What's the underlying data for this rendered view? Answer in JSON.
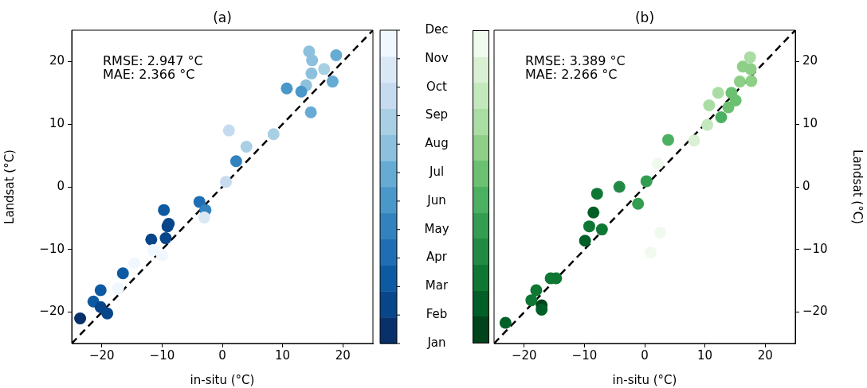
{
  "chart_data": [
    {
      "type": "scatter",
      "title": "(a)",
      "xlabel": "in-situ (°C)",
      "ylabel": "Landsat (°C)",
      "xlim": [
        -25,
        25
      ],
      "ylim": [
        -25,
        25
      ],
      "xticks": [
        -20,
        -10,
        0,
        10,
        20
      ],
      "yticks": [
        -20,
        -10,
        0,
        10,
        20
      ],
      "grid": false,
      "legend": false,
      "clim": [
        1,
        12
      ],
      "cticks": [
        {
          "value": 1,
          "label": "Jan"
        },
        {
          "value": 2,
          "label": "Feb"
        },
        {
          "value": 3,
          "label": "Mar"
        },
        {
          "value": 4,
          "label": "Apr"
        },
        {
          "value": 5,
          "label": "May"
        },
        {
          "value": 6,
          "label": "Jun"
        },
        {
          "value": 7,
          "label": "Jul"
        },
        {
          "value": 8,
          "label": "Aug"
        },
        {
          "value": 9,
          "label": "Sep"
        },
        {
          "value": 10,
          "label": "Oct"
        },
        {
          "value": 11,
          "label": "Nov"
        },
        {
          "value": 12,
          "label": "Dec"
        }
      ],
      "annotations": [
        "RMSE: 2.947 °C",
        "MAE: 2.366 °C"
      ],
      "series": [
        {
          "type": "scatter",
          "marker": "circle",
          "x": [
            14.4,
            18.9,
            14.9,
            16.9,
            14.8,
            18.3,
            13.9,
            10.7,
            13.1,
            14.7,
            1.1,
            8.5,
            4.0,
            2.3,
            0.6,
            -3.8,
            -2.8,
            -3.0,
            -9.7,
            -8.9,
            -9.1,
            -11.8,
            -9.4,
            -10.0,
            -11.5,
            -14.6,
            -16.5,
            -20.2,
            -21.4,
            -20.2,
            -19.1,
            -23.6,
            -17.3
          ],
          "values": [
            21.6,
            21.0,
            20.2,
            18.8,
            18.1,
            16.8,
            16.2,
            15.7,
            15.2,
            11.9,
            9.0,
            8.4,
            6.4,
            4.1,
            0.8,
            -2.4,
            -3.7,
            -4.9,
            -3.7,
            -5.9,
            -6.3,
            -8.4,
            -8.2,
            -10.9,
            -10.1,
            -12.2,
            -13.8,
            -16.5,
            -18.3,
            -19.2,
            -20.2,
            -21.0,
            -16.2
          ],
          "colors": [
            "#8cc0dd",
            "#66abd4",
            "#8cc0dd",
            "#a9cfe5",
            "#8cc0dd",
            "#66abd4",
            "#8cc0dd",
            "#4a97c9",
            "#4a97c9",
            "#66abd4",
            "#c6dbef",
            "#a9cfe5",
            "#a9cfe5",
            "#3282be",
            "#c6dbef",
            "#1f6eb3",
            "#3282be",
            "#dae8f6",
            "#0d5aa3",
            "#08468b",
            "#08468b",
            "#08468b",
            "#08468b",
            "#f1f7fe",
            "#f1f7fe",
            "#f1f7fe",
            "#0d5aa3",
            "#0d5aa3",
            "#0d5aa3",
            "#08468b",
            "#08468b",
            "#08306b",
            "#f1f7fe"
          ]
        },
        {
          "type": "line",
          "marker": "none",
          "x": [
            -25,
            25
          ],
          "values": [
            -25,
            25
          ],
          "color": "#000000",
          "line_style": "dashed"
        }
      ]
    },
    {
      "type": "scatter",
      "title": "(b)",
      "xlabel": "in-situ (°C)",
      "ylabel": "Landsat (°C)",
      "xlim": [
        -25,
        25
      ],
      "ylim": [
        -25,
        25
      ],
      "xticks": [
        -20,
        -10,
        0,
        10,
        20
      ],
      "yticks": [
        -20,
        -10,
        0,
        10,
        20
      ],
      "grid": false,
      "legend": false,
      "annotations": [
        "RMSE: 3.389 °C",
        "MAE: 2.266 °C"
      ],
      "series": [
        {
          "type": "scatter",
          "marker": "circle",
          "x": [
            17.5,
            16.3,
            17.6,
            15.8,
            17.7,
            12.2,
            14.4,
            15.1,
            13.9,
            10.7,
            12.7,
            10.4,
            8.2,
            3.9,
            2.2,
            0.3,
            -4.2,
            -7.9,
            -1.1,
            -8.5,
            -9.2,
            -7.1,
            -9.9,
            2.6,
            1.0,
            -15.6,
            -14.7,
            -18.0,
            -18.8,
            -17.1,
            -17.1,
            -23.1
          ],
          "values": [
            20.7,
            19.2,
            18.8,
            16.8,
            16.9,
            15.0,
            15.0,
            13.8,
            12.7,
            13.0,
            11.1,
            9.9,
            7.4,
            7.5,
            3.7,
            0.9,
            0.0,
            -1.1,
            -2.7,
            -4.1,
            -6.3,
            -6.8,
            -8.6,
            -7.3,
            -10.5,
            -14.6,
            -14.6,
            -16.5,
            -18.1,
            -18.9,
            -19.6,
            -21.7
          ],
          "colors": [
            "#aadda4",
            "#8ecf88",
            "#8ecf88",
            "#8ecf88",
            "#8ecf88",
            "#aadda4",
            "#6cc072",
            "#6cc072",
            "#6cc072",
            "#aadda4",
            "#4cb062",
            "#c4e8bd",
            "#d9f0d3",
            "#4cb062",
            "#f1faee",
            "#339e52",
            "#228a44",
            "#0e7734",
            "#339e52",
            "#005f27",
            "#0e7734",
            "#0e7734",
            "#005f27",
            "#f1faee",
            "#f1faee",
            "#0e7734",
            "#0e7734",
            "#0e7734",
            "#0e7734",
            "#00441b",
            "#005f27",
            "#005f27"
          ]
        },
        {
          "type": "line",
          "marker": "none",
          "x": [
            -25,
            25
          ],
          "values": [
            -25,
            25
          ],
          "color": "#000000",
          "line_style": "dashed"
        }
      ]
    }
  ]
}
